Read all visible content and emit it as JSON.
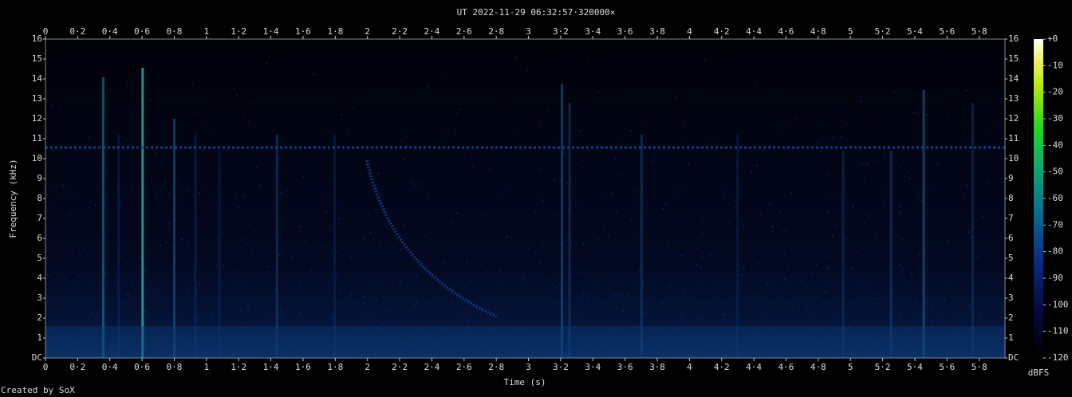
{
  "chart_data": {
    "type": "spectrogram",
    "title": "UT 2022-11-29 06:32:57·320000×",
    "xlabel": "Time (s)",
    "ylabel": "Frequency (kHz)",
    "footer": "Created by SoX",
    "xlim": [
      0,
      5.96
    ],
    "xticks": [
      0,
      {
        "value": 0.2,
        "label": "0·2"
      },
      {
        "value": 0.4,
        "label": "0·4"
      },
      {
        "value": 0.6,
        "label": "0·6"
      },
      {
        "value": 0.8,
        "label": "0·8"
      },
      1,
      {
        "value": 1.2,
        "label": "1·2"
      },
      {
        "value": 1.4,
        "label": "1·4"
      },
      {
        "value": 1.6,
        "label": "1·6"
      },
      {
        "value": 1.8,
        "label": "1·8"
      },
      2,
      {
        "value": 2.2,
        "label": "2·2"
      },
      {
        "value": 2.4,
        "label": "2·4"
      },
      {
        "value": 2.6,
        "label": "2·6"
      },
      {
        "value": 2.8,
        "label": "2·8"
      },
      3,
      {
        "value": 3.2,
        "label": "3·2"
      },
      {
        "value": 3.4,
        "label": "3·4"
      },
      {
        "value": 3.6,
        "label": "3·6"
      },
      {
        "value": 3.8,
        "label": "3·8"
      },
      4,
      {
        "value": 4.2,
        "label": "4·2"
      },
      {
        "value": 4.4,
        "label": "4·4"
      },
      {
        "value": 4.6,
        "label": "4·6"
      },
      {
        "value": 4.8,
        "label": "4·8"
      },
      5,
      {
        "value": 5.2,
        "label": "5·2"
      },
      {
        "value": 5.4,
        "label": "5·4"
      },
      {
        "value": 5.6,
        "label": "5·6"
      },
      {
        "value": 5.8,
        "label": "5·8"
      }
    ],
    "ylim": [
      0,
      16
    ],
    "yticks": [
      {
        "value": 0,
        "label": "DC"
      },
      1,
      2,
      3,
      4,
      5,
      6,
      7,
      8,
      9,
      10,
      11,
      12,
      13,
      14,
      15,
      16
    ],
    "colorbar": {
      "label": "dBFS",
      "lim": [
        -120,
        0
      ],
      "ticks": [
        {
          "value": 0,
          "label": "+0"
        },
        -10,
        -20,
        -30,
        -40,
        -50,
        -60,
        -70,
        -80,
        -90,
        -100,
        -110,
        -120
      ]
    }
  }
}
